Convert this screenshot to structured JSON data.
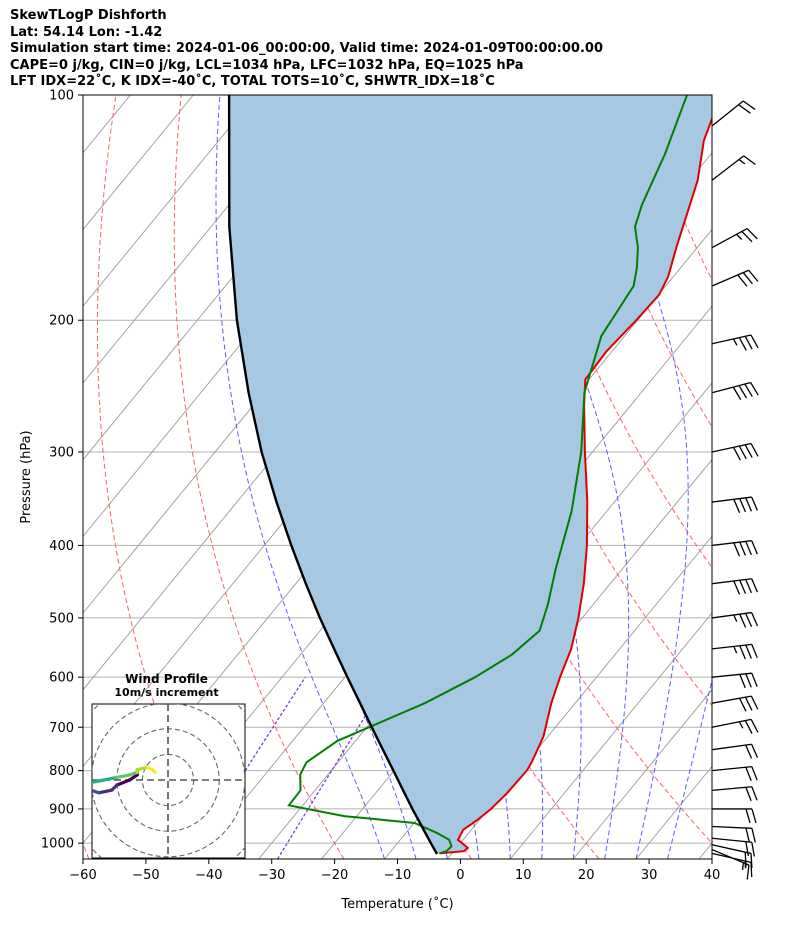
{
  "header": {
    "title": "SkewTLogP Dishforth",
    "location": "Lat: 54.14   Lon: -1.42",
    "times": "Simulation start time: 2024-01-06_00:00:00, Valid time: 2024-01-09T00:00:00.00",
    "params": "CAPE=0 j/kg, CIN=0 j/kg, LCL=1034 hPa, LFC=1032 hPa, EQ=1025 hPa",
    "indices": "LFT IDX=22˚C, K IDX=-40˚C, TOTAL TOTS=10˚C, SHWTR_IDX=18˚C"
  },
  "colors": {
    "temperature": "#e00000",
    "dewpoint": "#008000",
    "parcel": "#000000",
    "shade": "#a6c8e2",
    "dry_adiabat": "#ff6060",
    "moist_adiabat": "#5060ff",
    "mixing_ratio": "#7b3fd8",
    "isotherm": "#9a9a9a",
    "grid": "#b0b0b0"
  },
  "chart_data": {
    "type": "skew-t",
    "xlabel": "Temperature (˚C)",
    "ylabel": "Pressure (hPa)",
    "xlim": [
      -60,
      40
    ],
    "ylim": [
      1050,
      100
    ],
    "x_ticks": [
      -60,
      -50,
      -40,
      -30,
      -20,
      -10,
      0,
      10,
      20,
      30,
      40
    ],
    "x_tick_labels": [
      "−60",
      "−50",
      "−40",
      "−30",
      "−20",
      "−10",
      "0",
      "10",
      "20",
      "30",
      "40"
    ],
    "y_ticks": [
      1000,
      900,
      800,
      700,
      600,
      500,
      400,
      300,
      200,
      100
    ],
    "isotherms": [
      -150,
      -140,
      -130,
      -120,
      -110,
      -100,
      -90,
      -80,
      -70,
      -60,
      -50,
      -40,
      -30,
      -20,
      -10,
      0,
      10,
      20,
      30,
      40
    ],
    "dry_adiabats_theta_c": [
      -60,
      -40,
      -20,
      0,
      20,
      40,
      60,
      80,
      100,
      120,
      140,
      160
    ],
    "moist_adiabats_start_t": [
      -10,
      -5,
      0,
      5,
      10,
      15,
      20,
      25,
      30,
      35
    ],
    "mixing_ratio_gkg": [
      0.1,
      0.4
    ],
    "series": [
      {
        "name": "Temperature",
        "points": [
          [
            1032,
            -2.0
          ],
          [
            1025,
            1.6
          ],
          [
            1015,
            1.8
          ],
          [
            1005,
            0.8
          ],
          [
            990,
            -0.8
          ],
          [
            960,
            -1.3
          ],
          [
            930,
            -0.3
          ],
          [
            900,
            0.4
          ],
          [
            860,
            0.9
          ],
          [
            800,
            1.1
          ],
          [
            780,
            0.8
          ],
          [
            720,
            -0.7
          ],
          [
            650,
            -3.8
          ],
          [
            600,
            -5.8
          ],
          [
            550,
            -7.7
          ],
          [
            500,
            -10.6
          ],
          [
            450,
            -14.2
          ],
          [
            400,
            -18.7
          ],
          [
            350,
            -24.3
          ],
          [
            300,
            -31.2
          ],
          [
            260,
            -37.4
          ],
          [
            240,
            -40.6
          ],
          [
            220,
            -40.9
          ],
          [
            200,
            -40.2
          ],
          [
            185,
            -39.9
          ],
          [
            175,
            -40.8
          ],
          [
            160,
            -43.3
          ],
          [
            130,
            -48.7
          ],
          [
            115,
            -52.9
          ],
          [
            100,
            -56.1
          ]
        ]
      },
      {
        "name": "Dewpoint",
        "points": [
          [
            1032,
            -2.0
          ],
          [
            1025,
            -1.2
          ],
          [
            1010,
            -1.0
          ],
          [
            990,
            -2.2
          ],
          [
            970,
            -4.9
          ],
          [
            940,
            -9.9
          ],
          [
            920,
            -22.0
          ],
          [
            890,
            -32.2
          ],
          [
            850,
            -32.3
          ],
          [
            810,
            -34.4
          ],
          [
            780,
            -35.0
          ],
          [
            730,
            -32.9
          ],
          [
            650,
            -23.9
          ],
          [
            600,
            -19.3
          ],
          [
            560,
            -16.4
          ],
          [
            520,
            -15.1
          ],
          [
            480,
            -17.2
          ],
          [
            430,
            -20.6
          ],
          [
            360,
            -25.6
          ],
          [
            300,
            -31.8
          ],
          [
            250,
            -39.0
          ],
          [
            210,
            -43.7
          ],
          [
            180,
            -45.1
          ],
          [
            170,
            -47.0
          ],
          [
            160,
            -49.4
          ],
          [
            150,
            -52.6
          ],
          [
            140,
            -54.4
          ],
          [
            120,
            -57.3
          ],
          [
            100,
            -61.5
          ]
        ]
      },
      {
        "name": "Parcel",
        "points": [
          [
            1034,
            -2.3
          ],
          [
            1000,
            -4.7
          ],
          [
            950,
            -8.3
          ],
          [
            900,
            -12.1
          ],
          [
            850,
            -16.0
          ],
          [
            800,
            -20.1
          ],
          [
            750,
            -24.5
          ],
          [
            700,
            -29.2
          ],
          [
            650,
            -34.2
          ],
          [
            600,
            -39.6
          ],
          [
            550,
            -45.4
          ],
          [
            500,
            -51.7
          ],
          [
            450,
            -58.4
          ],
          [
            400,
            -65.7
          ],
          [
            350,
            -73.7
          ],
          [
            300,
            -82.6
          ],
          [
            250,
            -92.4
          ],
          [
            200,
            -103.7
          ],
          [
            150,
            -117.1
          ],
          [
            100,
            -134.3
          ]
        ]
      }
    ],
    "wind_barbs": [
      {
        "p": 1032,
        "u": -13,
        "v": 3
      },
      {
        "p": 1020,
        "u": -12,
        "v": 5
      },
      {
        "p": 1005,
        "u": -18,
        "v": 4
      },
      {
        "p": 985,
        "u": -20,
        "v": 2
      },
      {
        "p": 950,
        "u": -22,
        "v": 1
      },
      {
        "p": 900,
        "u": -20,
        "v": 0
      },
      {
        "p": 850,
        "u": -22,
        "v": -2
      },
      {
        "p": 800,
        "u": -20,
        "v": -2
      },
      {
        "p": 750,
        "u": -22,
        "v": -3
      },
      {
        "p": 700,
        "u": -25,
        "v": -5
      },
      {
        "p": 650,
        "u": -28,
        "v": -5
      },
      {
        "p": 600,
        "u": -30,
        "v": -3
      },
      {
        "p": 550,
        "u": -35,
        "v": -4
      },
      {
        "p": 500,
        "u": -37,
        "v": -5
      },
      {
        "p": 450,
        "u": -40,
        "v": -5
      },
      {
        "p": 400,
        "u": -42,
        "v": -5
      },
      {
        "p": 350,
        "u": -40,
        "v": -5
      },
      {
        "p": 300,
        "u": -37,
        "v": -8
      },
      {
        "p": 250,
        "u": -38,
        "v": -10
      },
      {
        "p": 215,
        "u": -36,
        "v": -8
      },
      {
        "p": 180,
        "u": -28,
        "v": -12
      },
      {
        "p": 160,
        "u": -22,
        "v": -12
      },
      {
        "p": 130,
        "u": -13,
        "v": -10
      },
      {
        "p": 110,
        "u": -15,
        "v": -12
      }
    ],
    "hodograph": {
      "title": "Wind Profile",
      "subtitle": "10m/s increment",
      "ring_step_ms": 10,
      "range_ms": 30,
      "points": [
        [
          4,
          -12
        ],
        [
          2,
          -12
        ],
        [
          0,
          -15
        ],
        [
          -2,
          -20
        ],
        [
          -4,
          -22
        ],
        [
          -5,
          -27
        ],
        [
          -4,
          -30
        ],
        [
          -3,
          -33
        ],
        [
          -3,
          -37
        ],
        [
          -3,
          -39
        ],
        [
          -2,
          -35
        ],
        [
          -1,
          -30
        ],
        [
          0,
          -25
        ],
        [
          1,
          -20
        ],
        [
          2,
          -15
        ],
        [
          3,
          -12
        ],
        [
          4,
          -12
        ],
        [
          5,
          -8
        ],
        [
          4,
          -6
        ],
        [
          3,
          -5
        ]
      ],
      "colors": [
        "#440154",
        "#472d7b",
        "#3b528b",
        "#2c728e",
        "#21918c",
        "#28ae80",
        "#5ec962",
        "#addc30",
        "#fde725"
      ]
    }
  }
}
